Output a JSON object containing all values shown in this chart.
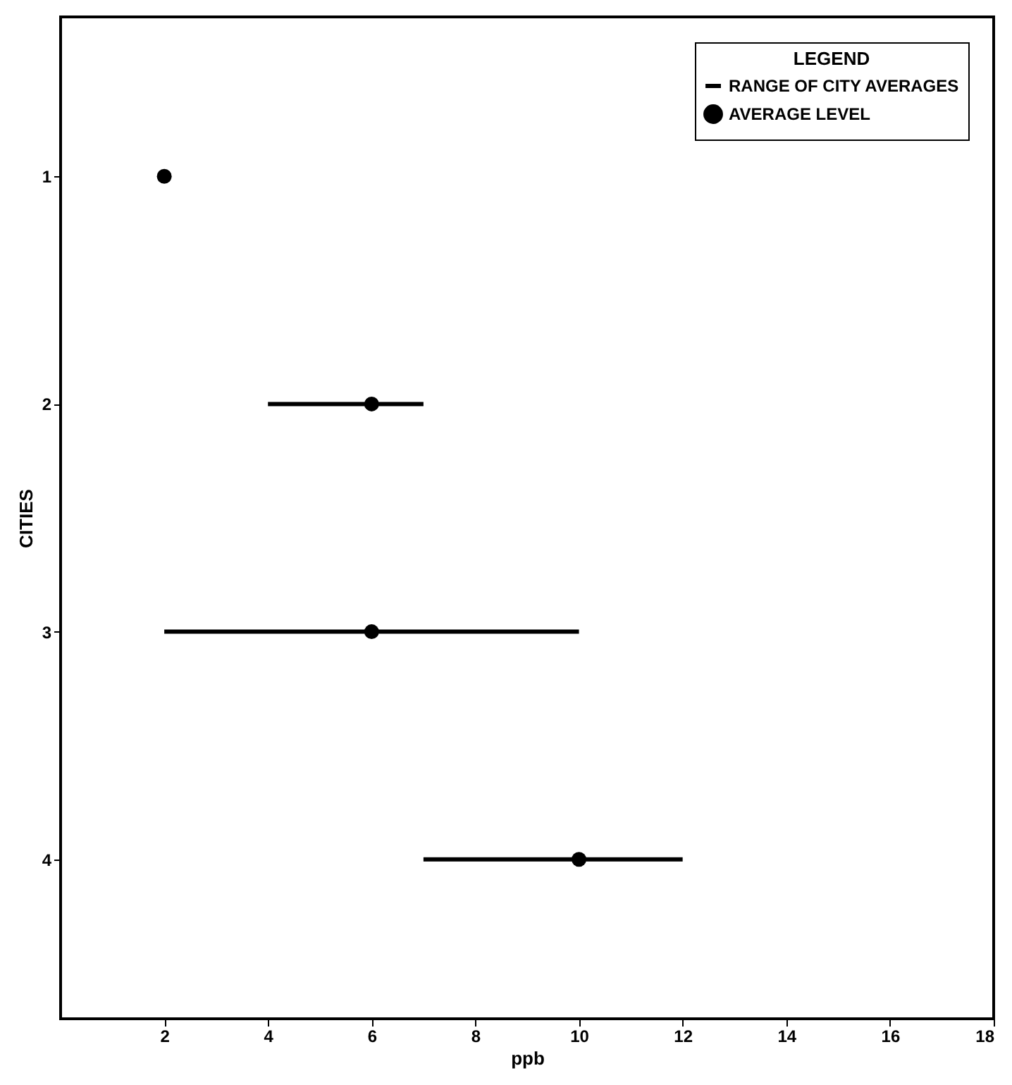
{
  "chart_data": {
    "type": "scatter",
    "orientation": "horizontal",
    "xlabel": "ppb",
    "ylabel": "CITIES",
    "legend_title": "LEGEND",
    "categories": [
      "1",
      "2",
      "3",
      "4"
    ],
    "series": [
      {
        "name": "RANGE OF CITY AVERAGES",
        "type": "bar",
        "color": "#000000",
        "base": [
          null,
          4,
          2,
          7
        ],
        "values": [
          null,
          3,
          8,
          5
        ]
      },
      {
        "name": "AVERAGE LEVEL",
        "color": "#000000",
        "values": [
          2,
          6,
          6,
          10
        ]
      }
    ],
    "xlim": [
      0,
      18
    ],
    "xticks": [
      2,
      4,
      6,
      8,
      10,
      12,
      14,
      16,
      18
    ],
    "grid": false,
    "legend": "top right",
    "marker": "circle"
  }
}
